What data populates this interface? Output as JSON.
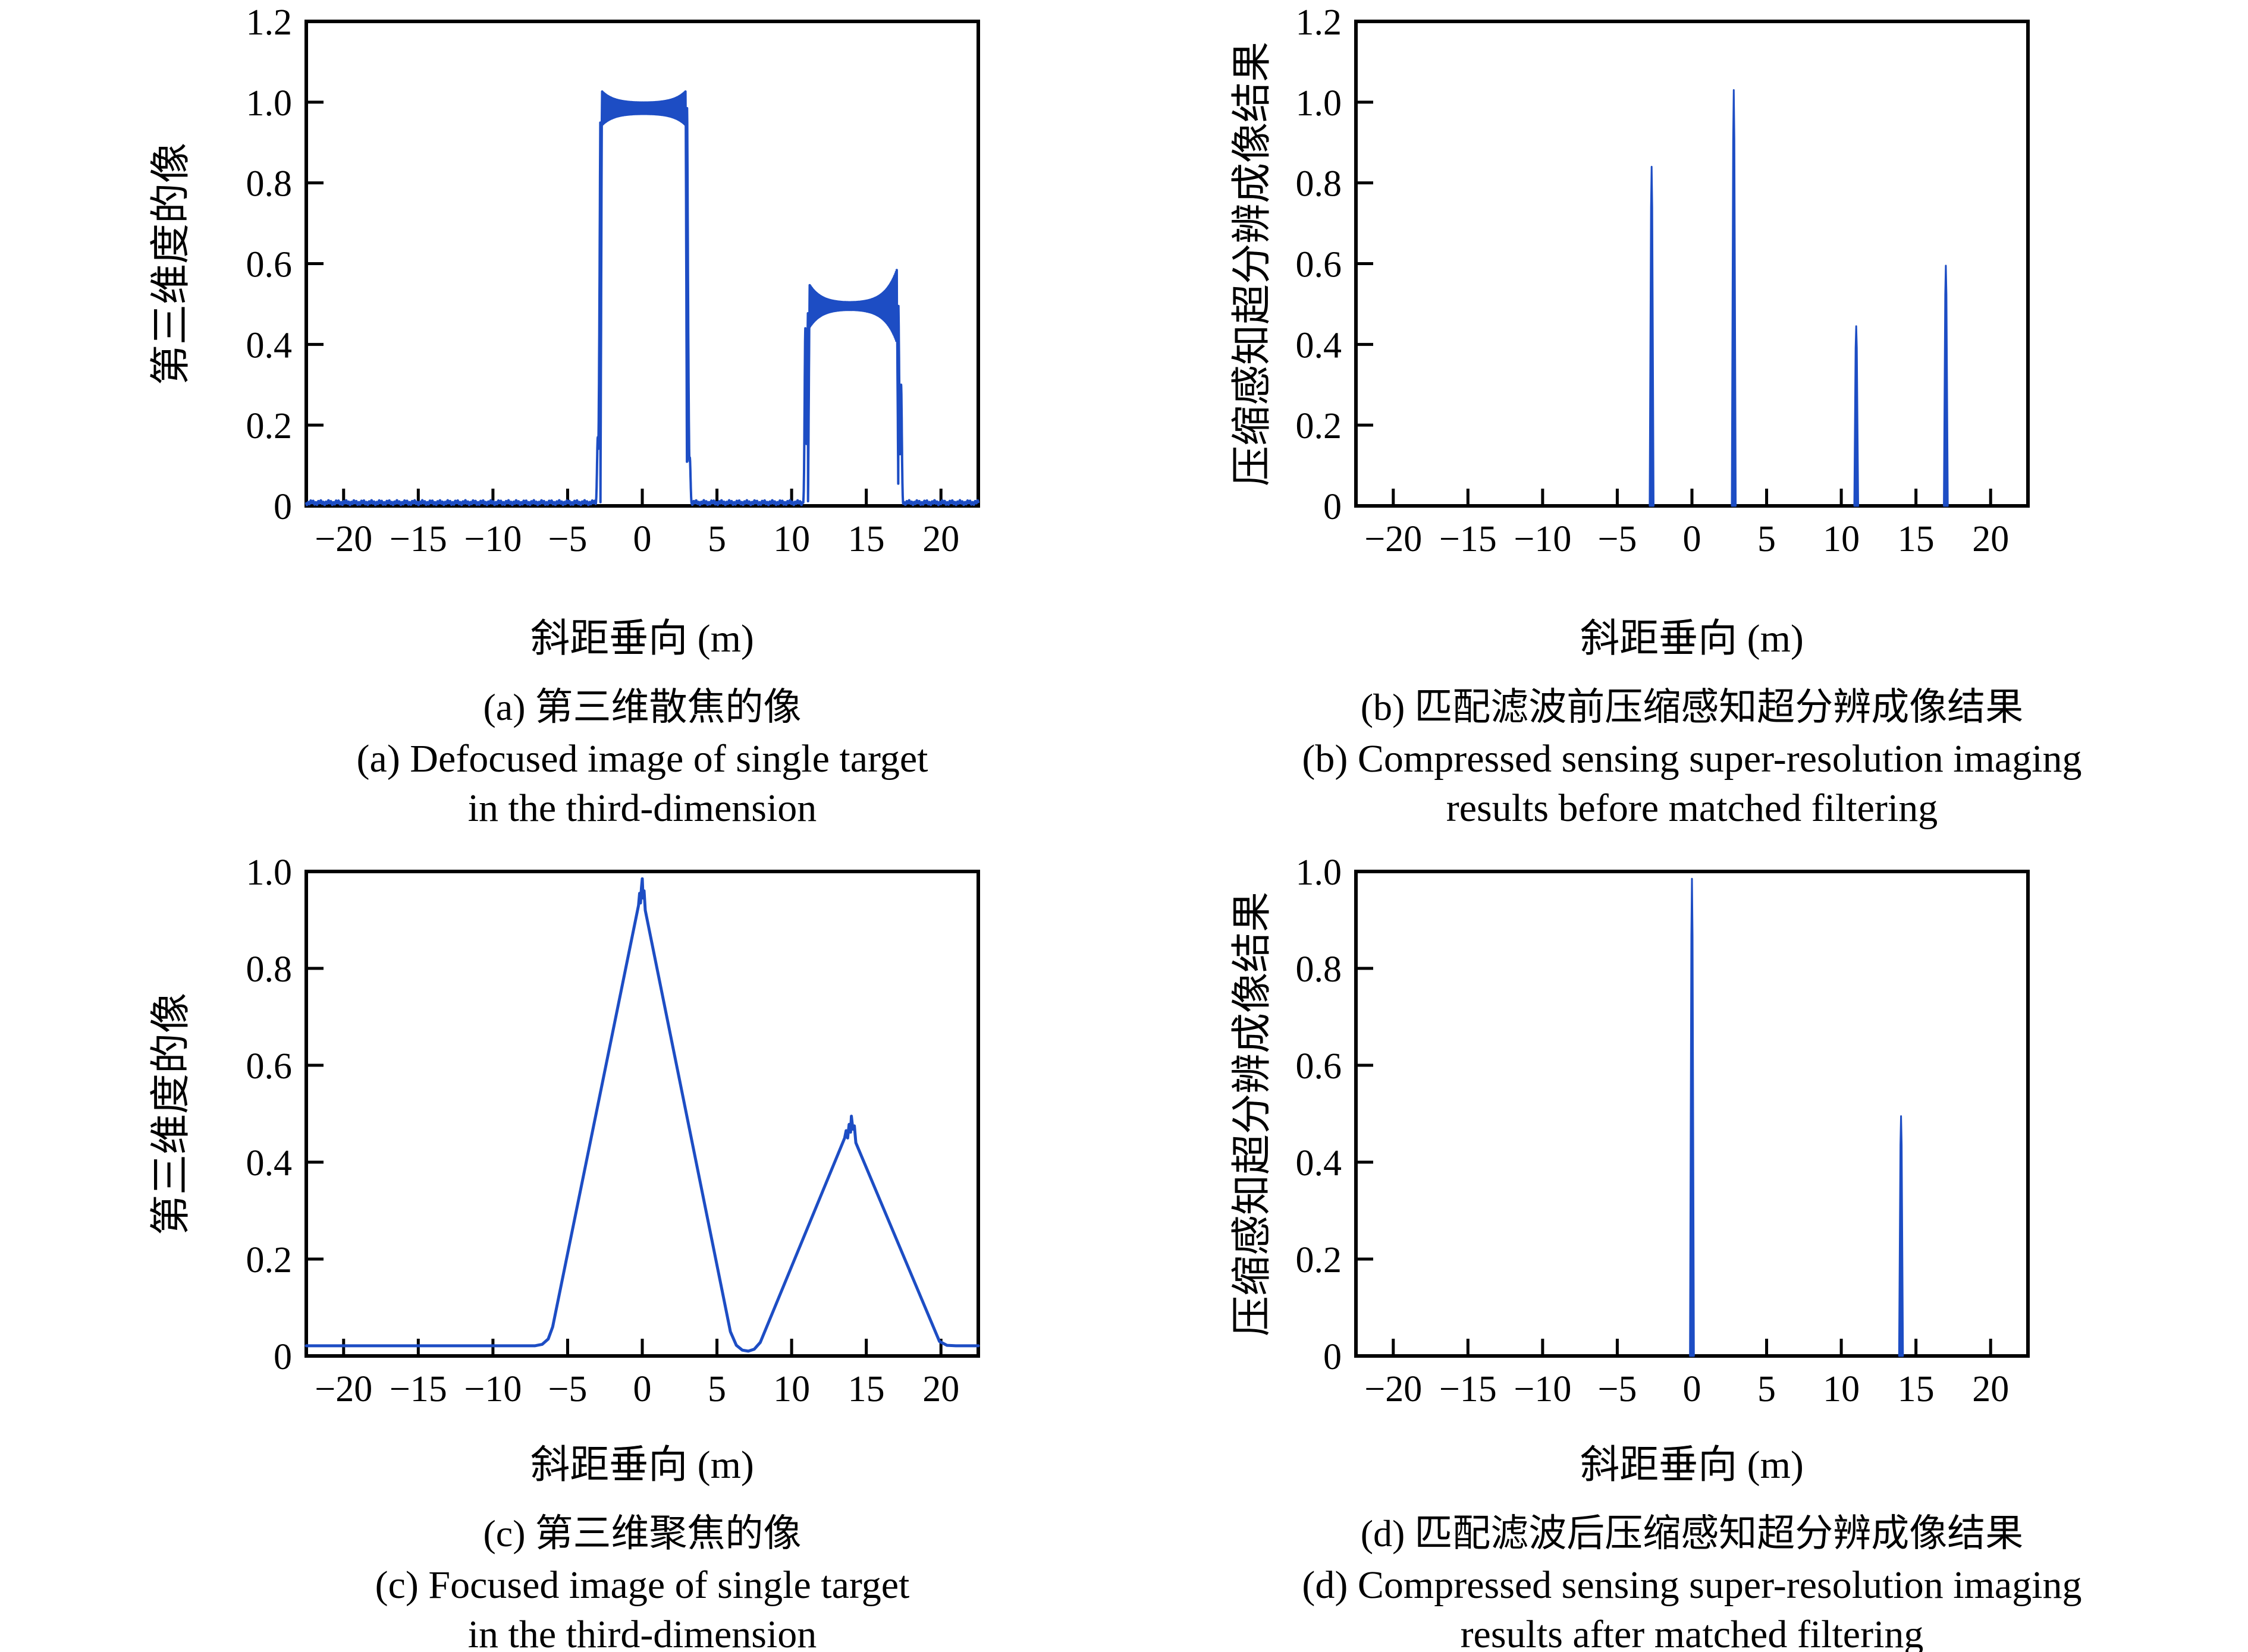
{
  "colors": {
    "line": "#1d4dc4",
    "axis": "#000000",
    "background": "#ffffff",
    "text": "#000000"
  },
  "figure": {
    "xlabel": "斜距垂向 (m)",
    "panels": [
      {
        "id": "a",
        "ylabel": "第三维度的像",
        "caption_zh": "(a) 第三维散焦的像",
        "caption_en1": "(a) Defocused image of single target",
        "caption_en2": "in the third-dimension"
      },
      {
        "id": "b",
        "ylabel": "压缩感知超分辨成像结果",
        "caption_zh": "(b) 匹配滤波前压缩感知超分辨成像结果",
        "caption_en1": "(b) Compressed sensing super-resolution imaging",
        "caption_en2": "results before matched filtering"
      },
      {
        "id": "c",
        "ylabel": "第三维度的像",
        "caption_zh": "(c) 第三维聚焦的像",
        "caption_en1": "(c) Focused image of single target",
        "caption_en2": "in the third-dimension"
      },
      {
        "id": "d",
        "ylabel": "压缩感知超分辨成像结果",
        "caption_zh": "(d) 匹配滤波后压缩感知超分辨成像结果",
        "caption_en1": "(d) Compressed sensing super-resolution imaging",
        "caption_en2": "results after matched filtering"
      }
    ]
  },
  "chart_data": [
    {
      "id": "a",
      "type": "line",
      "subtype": "defocused_pulses",
      "title": "(a) 第三维散焦的像 / Defocused image of single target in the third-dimension",
      "xlabel": "斜距垂向 (m)",
      "ylabel": "第三维度的像",
      "xlim": [
        -22.5,
        22.5
      ],
      "ylim": [
        0,
        1.2
      ],
      "xticks": [
        -20,
        -15,
        -10,
        -5,
        0,
        5,
        10,
        15,
        20
      ],
      "yticks": [
        0,
        0.2,
        0.4,
        0.6,
        0.8,
        1.0,
        1.2
      ],
      "grid": false,
      "legend": "none",
      "baseline": 0.008,
      "pulses": [
        {
          "start": -2.8,
          "end": 3.0,
          "plateau": 0.985,
          "corner_left": 1.02,
          "corner_right": 1.02,
          "feet": [
            0.17,
            0.12
          ]
        },
        {
          "start": 11.1,
          "end": 17.15,
          "plateau": 0.495,
          "corner_left": 0.55,
          "corner_right": 0.595,
          "feet": [
            0.44,
            0.3
          ]
        }
      ]
    },
    {
      "id": "b",
      "type": "line",
      "subtype": "impulse_spikes",
      "title": "(b) 匹配滤波前压缩感知超分辨成像结果 / Compressed sensing super-resolution imaging results before matched filtering",
      "xlabel": "斜距垂向 (m)",
      "ylabel": "压缩感知超分辨成像结果",
      "xlim": [
        -22.5,
        22.5
      ],
      "ylim": [
        0,
        1.2
      ],
      "xticks": [
        -20,
        -15,
        -10,
        -5,
        0,
        5,
        10,
        15,
        20
      ],
      "yticks": [
        0,
        0.2,
        0.4,
        0.6,
        0.8,
        1.0,
        1.2
      ],
      "grid": false,
      "legend": "none",
      "spikes": [
        {
          "x": -2.7,
          "height": 0.84
        },
        {
          "x": 2.8,
          "height": 1.03
        },
        {
          "x": 11.0,
          "height": 0.445
        },
        {
          "x": 17.0,
          "height": 0.595
        }
      ]
    },
    {
      "id": "c",
      "type": "line",
      "subtype": "piecewise_triangles",
      "title": "(c) 第三维聚焦的像 / Focused image of single target in the third-dimension",
      "xlabel": "斜距垂向 (m)",
      "ylabel": "第三维度的像",
      "xlim": [
        -22.5,
        22.5
      ],
      "ylim": [
        0,
        1.0
      ],
      "xticks": [
        -20,
        -15,
        -10,
        -5,
        0,
        5,
        10,
        15,
        20
      ],
      "yticks": [
        0,
        0.2,
        0.4,
        0.6,
        0.8,
        1.0
      ],
      "grid": false,
      "legend": "none",
      "points": [
        [
          -22.5,
          0.021
        ],
        [
          -7.2,
          0.021
        ],
        [
          -6.7,
          0.024
        ],
        [
          -6.3,
          0.035
        ],
        [
          -6.0,
          0.06
        ],
        [
          -0.25,
          0.93
        ],
        [
          -0.18,
          0.955
        ],
        [
          -0.12,
          0.935
        ],
        [
          -0.06,
          0.965
        ],
        [
          0,
          0.985
        ],
        [
          0.05,
          0.945
        ],
        [
          0.12,
          0.96
        ],
        [
          0.2,
          0.92
        ],
        [
          5.9,
          0.05
        ],
        [
          6.3,
          0.022
        ],
        [
          6.7,
          0.012
        ],
        [
          7.1,
          0.01
        ],
        [
          7.5,
          0.014
        ],
        [
          7.9,
          0.028
        ],
        [
          13.55,
          0.45
        ],
        [
          13.65,
          0.465
        ],
        [
          13.75,
          0.45
        ],
        [
          13.85,
          0.478
        ],
        [
          13.95,
          0.462
        ],
        [
          14.0,
          0.495
        ],
        [
          14.1,
          0.468
        ],
        [
          14.2,
          0.475
        ],
        [
          14.3,
          0.44
        ],
        [
          19.9,
          0.03
        ],
        [
          20.4,
          0.022
        ],
        [
          21.0,
          0.021
        ],
        [
          22.5,
          0.021
        ]
      ]
    },
    {
      "id": "d",
      "type": "line",
      "subtype": "impulse_spikes",
      "title": "(d) 匹配滤波后压缩感知超分辨成像结果 / Compressed sensing super-resolution imaging results after matched filtering",
      "xlabel": "斜距垂向 (m)",
      "ylabel": "压缩感知超分辨成像结果",
      "xlim": [
        -22.5,
        22.5
      ],
      "ylim": [
        0,
        1.0
      ],
      "xticks": [
        -20,
        -15,
        -10,
        -5,
        0,
        5,
        10,
        15,
        20
      ],
      "yticks": [
        0,
        0.2,
        0.4,
        0.6,
        0.8,
        1.0
      ],
      "grid": false,
      "legend": "none",
      "spikes": [
        {
          "x": 0,
          "height": 0.985
        },
        {
          "x": 14,
          "height": 0.495
        }
      ]
    }
  ]
}
